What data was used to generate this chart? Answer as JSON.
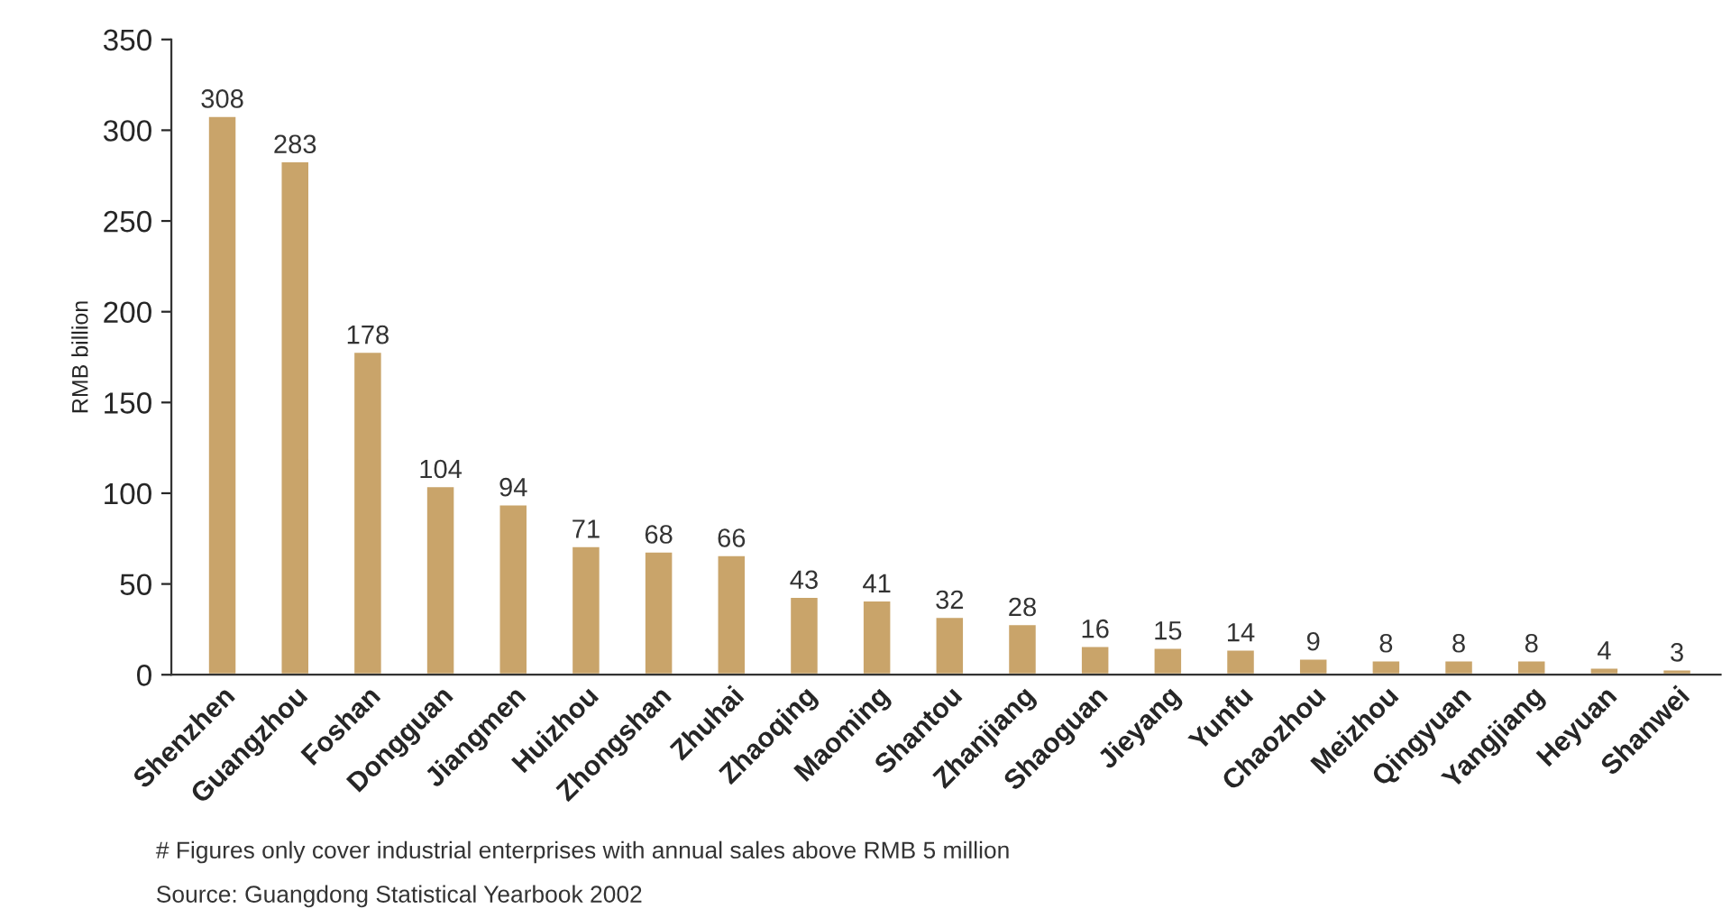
{
  "chart_data": {
    "type": "bar",
    "ylabel": "RMB billion",
    "categories": [
      "Shenzhen",
      "Guangzhou",
      "Foshan",
      "Dongguan",
      "Jiangmen",
      "Huizhou",
      "Zhongshan",
      "Zhuhai",
      "Zhaoqing",
      "Maoming",
      "Shantou",
      "Zhanjiang",
      "Shaoguan",
      "Jieyang",
      "Yunfu",
      "Chaozhou",
      "Meizhou",
      "Qingyuan",
      "Yangjiang",
      "Heyuan",
      "Shanwei"
    ],
    "values": [
      308,
      283,
      178,
      104,
      94,
      71,
      68,
      66,
      43,
      41,
      32,
      28,
      16,
      15,
      14,
      9,
      8,
      8,
      8,
      4,
      3
    ],
    "color": "#c9a46a",
    "ylim": [
      0,
      350
    ],
    "yticks": [
      0,
      50,
      100,
      150,
      200,
      250,
      300,
      350
    ],
    "grid": false,
    "data_labels": true,
    "annotations": [
      "# Figures only cover industrial enterprises with annual sales above RMB 5 million",
      "Source: Guangdong Statistical Yearbook 2002"
    ]
  }
}
